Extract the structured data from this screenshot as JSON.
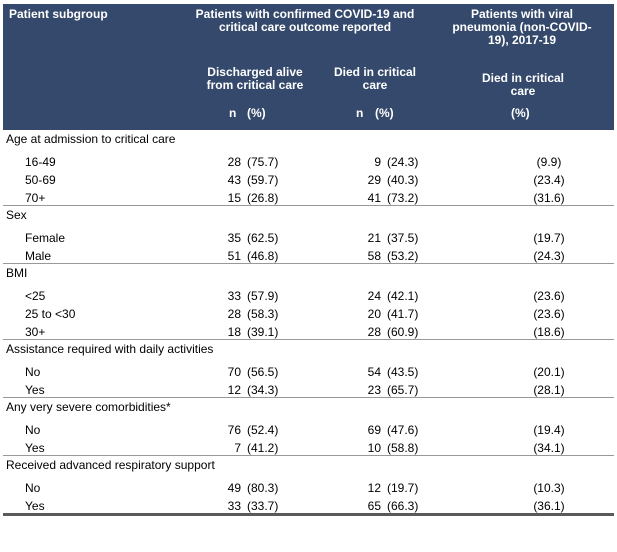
{
  "header": {
    "col_subgroup": "Patient subgroup",
    "col_covid": "Patients with confirmed COVID-19 and critical care outcome reported",
    "col_viral": "Patients with viral pneumonia (non-COVID-19), 2017-19",
    "sub_discharged": "Discharged alive from critical care",
    "sub_died": "Died in critical care",
    "sub_viral_died": "Died in critical care",
    "n_label": "n",
    "pct_label": "(%)"
  },
  "groups": [
    {
      "label": "Age at admission to critical care",
      "rows": [
        {
          "label": "16-49",
          "dis_n": "28",
          "dis_p": "(75.7)",
          "died_n": "9",
          "died_p": "(24.3)",
          "viral_p": "(9.9)"
        },
        {
          "label": "50-69",
          "dis_n": "43",
          "dis_p": "(59.7)",
          "died_n": "29",
          "died_p": "(40.3)",
          "viral_p": "(23.4)"
        },
        {
          "label": "70+",
          "dis_n": "15",
          "dis_p": "(26.8)",
          "died_n": "41",
          "died_p": "(73.2)",
          "viral_p": "(31.6)"
        }
      ]
    },
    {
      "label": "Sex",
      "rows": [
        {
          "label": "Female",
          "dis_n": "35",
          "dis_p": "(62.5)",
          "died_n": "21",
          "died_p": "(37.5)",
          "viral_p": "(19.7)"
        },
        {
          "label": "Male",
          "dis_n": "51",
          "dis_p": "(46.8)",
          "died_n": "58",
          "died_p": "(53.2)",
          "viral_p": "(24.3)"
        }
      ]
    },
    {
      "label": "BMI",
      "rows": [
        {
          "label": "<25",
          "dis_n": "33",
          "dis_p": "(57.9)",
          "died_n": "24",
          "died_p": "(42.1)",
          "viral_p": "(23.6)"
        },
        {
          "label": "25 to <30",
          "dis_n": "28",
          "dis_p": "(58.3)",
          "died_n": "20",
          "died_p": "(41.7)",
          "viral_p": "(23.6)"
        },
        {
          "label": "30+",
          "dis_n": "18",
          "dis_p": "(39.1)",
          "died_n": "28",
          "died_p": "(60.9)",
          "viral_p": "(18.6)"
        }
      ]
    },
    {
      "label": "Assistance required with daily activities",
      "rows": [
        {
          "label": "No",
          "dis_n": "70",
          "dis_p": "(56.5)",
          "died_n": "54",
          "died_p": "(43.5)",
          "viral_p": "(20.1)"
        },
        {
          "label": "Yes",
          "dis_n": "12",
          "dis_p": "(34.3)",
          "died_n": "23",
          "died_p": "(65.7)",
          "viral_p": "(28.1)"
        }
      ]
    },
    {
      "label": "Any very severe comorbidities*",
      "rows": [
        {
          "label": "No",
          "dis_n": "76",
          "dis_p": "(52.4)",
          "died_n": "69",
          "died_p": "(47.6)",
          "viral_p": "(19.4)"
        },
        {
          "label": "Yes",
          "dis_n": "7",
          "dis_p": "(41.2)",
          "died_n": "10",
          "died_p": "(58.8)",
          "viral_p": "(34.1)"
        }
      ]
    },
    {
      "label": "Received advanced respiratory support",
      "rows": [
        {
          "label": "No",
          "dis_n": "49",
          "dis_p": "(80.3)",
          "died_n": "12",
          "died_p": "(19.7)",
          "viral_p": "(10.3)"
        },
        {
          "label": "Yes",
          "dis_n": "33",
          "dis_p": "(33.7)",
          "died_n": "65",
          "died_p": "(66.3)",
          "viral_p": "(36.1)"
        }
      ]
    }
  ]
}
